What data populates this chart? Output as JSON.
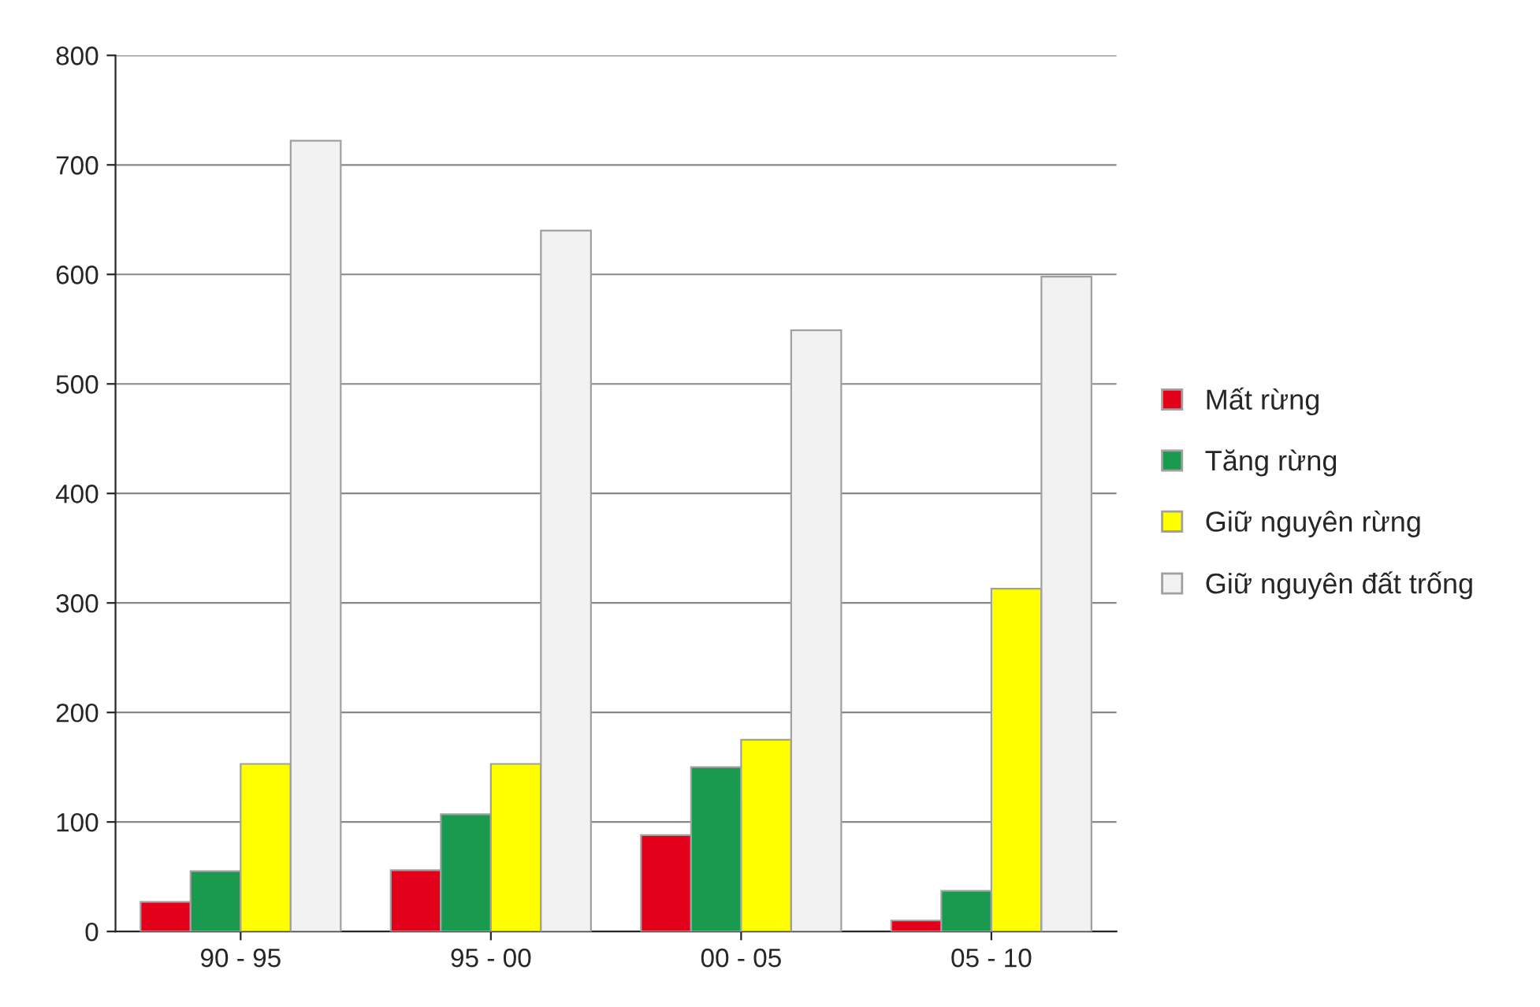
{
  "chart_data": {
    "type": "bar",
    "categories": [
      "90 - 95",
      "95 - 00",
      "00 - 05",
      "05 - 10"
    ],
    "series": [
      {
        "name": "Mất rừng",
        "color": "#e3001b",
        "values": [
          27,
          56,
          88,
          10
        ]
      },
      {
        "name": "Tăng rừng",
        "color": "#1a9a4e",
        "values": [
          55,
          107,
          150,
          37
        ]
      },
      {
        "name": "Giữ nguyên rừng",
        "color": "#ffff00",
        "values": [
          153,
          153,
          175,
          313
        ]
      },
      {
        "name": "Giữ nguyên đất trống",
        "color": "#f2f2f2",
        "values": [
          722,
          640,
          549,
          598
        ]
      }
    ],
    "ylim": [
      0,
      800
    ],
    "yticks": [
      0,
      100,
      200,
      300,
      400,
      500,
      600,
      700,
      800
    ],
    "grid": "y",
    "legend": "right"
  }
}
